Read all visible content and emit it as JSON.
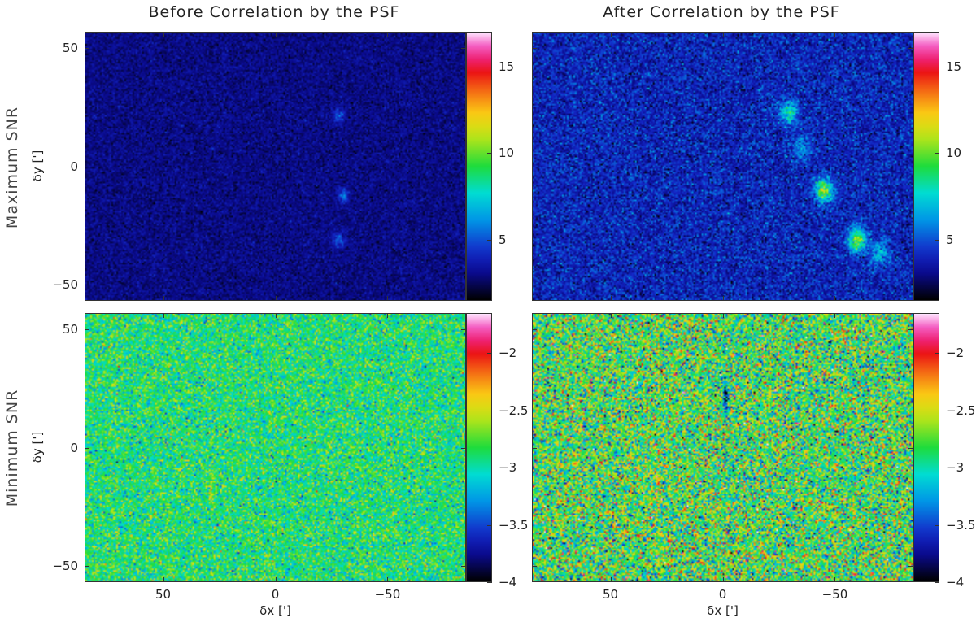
{
  "columns": [
    "Before Correlation by the PSF",
    "After Correlation by the PSF"
  ],
  "rows": [
    "Maximum SNR",
    "Minimum SNR"
  ],
  "chart_data": [
    {
      "type": "heatmap",
      "title": "Before Correlation by the PSF",
      "row_label": "Maximum SNR",
      "ylabel": "δy [']",
      "xlabel": "",
      "x_range": [
        85,
        -85
      ],
      "y_range": [
        -57,
        57
      ],
      "y_ticks": [
        "50",
        "0",
        "−50"
      ],
      "x_ticks": [],
      "colorbar": {
        "range": [
          1.5,
          17
        ],
        "ticks": [
          "15",
          "10",
          "5"
        ]
      },
      "background_level": 3.0,
      "features": [
        {
          "x": -30,
          "y": -12,
          "value": 6
        },
        {
          "x": -28,
          "y": -31,
          "value": 6
        },
        {
          "x": -28,
          "y": 22,
          "value": 5.5
        }
      ]
    },
    {
      "type": "heatmap",
      "title": "After Correlation by the PSF",
      "row_label": "Maximum SNR",
      "ylabel": "",
      "xlabel": "",
      "x_range": [
        85,
        -85
      ],
      "y_range": [
        -57,
        57
      ],
      "y_ticks": [],
      "x_ticks": [],
      "colorbar": {
        "range": [
          1.5,
          17
        ],
        "ticks": [
          "15",
          "10",
          "5"
        ]
      },
      "background_level": 4.0,
      "features": [
        {
          "x": -29,
          "y": 23,
          "value": 9
        },
        {
          "x": -45,
          "y": -10,
          "value": 12
        },
        {
          "x": -60,
          "y": -31,
          "value": 12
        },
        {
          "x": -70,
          "y": -37,
          "value": 8
        },
        {
          "x": -35,
          "y": 8,
          "value": 7
        }
      ]
    },
    {
      "type": "heatmap",
      "title": "Before Correlation by the PSF",
      "row_label": "Minimum SNR",
      "ylabel": "δy [']",
      "xlabel": "δx [']",
      "x_range": [
        85,
        -85
      ],
      "y_range": [
        -57,
        57
      ],
      "y_ticks": [
        "50",
        "0",
        "−50"
      ],
      "x_ticks": [
        "50",
        "0",
        "−50"
      ],
      "colorbar": {
        "range": [
          -4,
          -1.65
        ],
        "ticks": [
          "−2",
          "−2.5",
          "−3",
          "−3.5",
          "−4"
        ]
      },
      "background_level": -2.9,
      "features": [
        {
          "x": 29,
          "y": -17,
          "value": -2.5
        }
      ]
    },
    {
      "type": "heatmap",
      "title": "After Correlation by the PSF",
      "row_label": "Minimum SNR",
      "ylabel": "",
      "xlabel": "δx [']",
      "x_range": [
        85,
        -85
      ],
      "y_range": [
        -57,
        57
      ],
      "y_ticks": [],
      "x_ticks": [
        "50",
        "0",
        "−50"
      ],
      "colorbar": {
        "range": [
          -4,
          -1.65
        ],
        "ticks": [
          "−2",
          "−2.5",
          "−3",
          "−3.5",
          "−4"
        ]
      },
      "background_level": -2.8,
      "features": [
        {
          "x": 29,
          "y": -17,
          "value": -2.3
        },
        {
          "x": -1,
          "y": 22,
          "value": -4.0
        }
      ]
    }
  ]
}
